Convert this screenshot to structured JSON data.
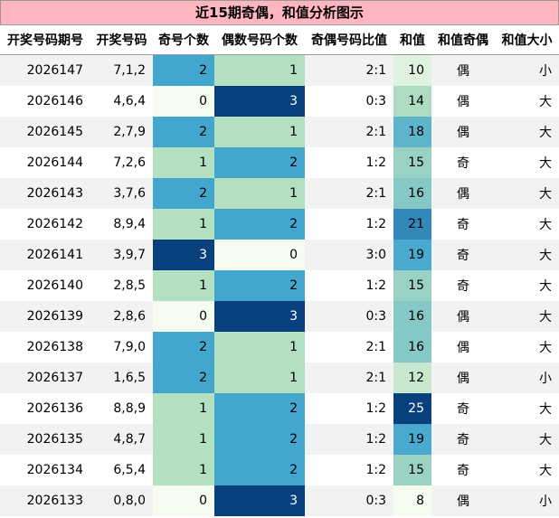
{
  "title": "近15期奇偶，和值分析图示",
  "colors": {
    "title_bg": "#ffb6c1",
    "scale": [
      "#f7fcf0",
      "#b3e0c0",
      "#43a6cf",
      "#08407e"
    ]
  },
  "chart_data": {
    "type": "table",
    "columns": [
      "开奖号码期号",
      "开奖号码",
      "奇号个数",
      "偶数号码个数",
      "奇偶号码比值",
      "和值",
      "和值奇偶",
      "和值大小"
    ],
    "rows": [
      {
        "period": "2026147",
        "numbers": "7,1,2",
        "odd": 2,
        "even": 1,
        "ratio": "2:1",
        "sum": 10,
        "sum_parity": "偶",
        "sum_size": "小"
      },
      {
        "period": "2026146",
        "numbers": "4,6,4",
        "odd": 0,
        "even": 3,
        "ratio": "0:3",
        "sum": 14,
        "sum_parity": "偶",
        "sum_size": "大"
      },
      {
        "period": "2026145",
        "numbers": "2,7,9",
        "odd": 2,
        "even": 1,
        "ratio": "2:1",
        "sum": 18,
        "sum_parity": "偶",
        "sum_size": "大"
      },
      {
        "period": "2026144",
        "numbers": "7,2,6",
        "odd": 1,
        "even": 2,
        "ratio": "1:2",
        "sum": 15,
        "sum_parity": "奇",
        "sum_size": "大"
      },
      {
        "period": "2026143",
        "numbers": "3,7,6",
        "odd": 2,
        "even": 1,
        "ratio": "2:1",
        "sum": 16,
        "sum_parity": "偶",
        "sum_size": "大"
      },
      {
        "period": "2026142",
        "numbers": "8,9,4",
        "odd": 1,
        "even": 2,
        "ratio": "1:2",
        "sum": 21,
        "sum_parity": "奇",
        "sum_size": "大"
      },
      {
        "period": "2026141",
        "numbers": "3,9,7",
        "odd": 3,
        "even": 0,
        "ratio": "3:0",
        "sum": 19,
        "sum_parity": "奇",
        "sum_size": "大"
      },
      {
        "period": "2026140",
        "numbers": "2,8,5",
        "odd": 1,
        "even": 2,
        "ratio": "1:2",
        "sum": 15,
        "sum_parity": "奇",
        "sum_size": "大"
      },
      {
        "period": "2026139",
        "numbers": "2,8,6",
        "odd": 0,
        "even": 3,
        "ratio": "0:3",
        "sum": 16,
        "sum_parity": "偶",
        "sum_size": "大"
      },
      {
        "period": "2026138",
        "numbers": "7,9,0",
        "odd": 2,
        "even": 1,
        "ratio": "2:1",
        "sum": 16,
        "sum_parity": "偶",
        "sum_size": "大"
      },
      {
        "period": "2026137",
        "numbers": "1,6,5",
        "odd": 2,
        "even": 1,
        "ratio": "2:1",
        "sum": 12,
        "sum_parity": "偶",
        "sum_size": "小"
      },
      {
        "period": "2026136",
        "numbers": "8,8,9",
        "odd": 1,
        "even": 2,
        "ratio": "1:2",
        "sum": 25,
        "sum_parity": "奇",
        "sum_size": "大"
      },
      {
        "period": "2026135",
        "numbers": "4,8,7",
        "odd": 1,
        "even": 2,
        "ratio": "1:2",
        "sum": 19,
        "sum_parity": "奇",
        "sum_size": "大"
      },
      {
        "period": "2026134",
        "numbers": "6,5,4",
        "odd": 1,
        "even": 2,
        "ratio": "1:2",
        "sum": 15,
        "sum_parity": "奇",
        "sum_size": "大"
      },
      {
        "period": "2026133",
        "numbers": "0,8,0",
        "odd": 0,
        "even": 3,
        "ratio": "0:3",
        "sum": 8,
        "sum_parity": "偶",
        "sum_size": "小"
      }
    ]
  }
}
